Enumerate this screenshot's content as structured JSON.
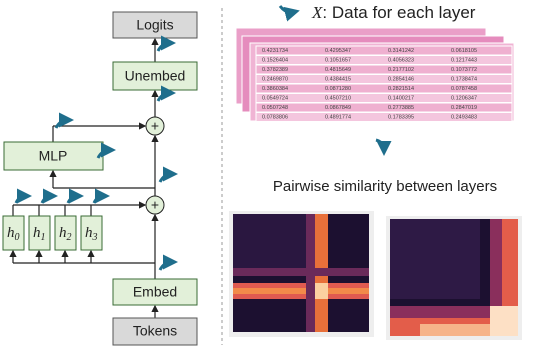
{
  "left": {
    "logits": "Logits",
    "unembed": "Unembed",
    "mlp": "MLP",
    "embed": "Embed",
    "tokens": "Tokens",
    "hidden": [
      {
        "base": "h",
        "sub": "0"
      },
      {
        "base": "h",
        "sub": "1"
      },
      {
        "base": "h",
        "sub": "2"
      },
      {
        "base": "h",
        "sub": "3"
      }
    ],
    "plus": "+"
  },
  "right": {
    "title_var": "X",
    "title_rest": ": Data for each layer",
    "subtitle": "Pairwise similarity between layers",
    "table": {
      "rows": [
        [
          "0.4231734",
          "0.4295347",
          "0.3141242",
          "0.0618105"
        ],
        [
          "0.1526404",
          "0.1051657",
          "0.4056323",
          "0.1217443"
        ],
        [
          "0.3782389",
          "0.4815649",
          "0.2177102",
          "0.1073772"
        ],
        [
          "0.2469870",
          "0.4384415",
          "0.2854146",
          "0.1738474"
        ],
        [
          "0.3860384",
          "0.0871280",
          "0.2821514",
          "0.0787458"
        ],
        [
          "0.0549724",
          "0.4507210",
          "0.1400217",
          "0.1206347"
        ],
        [
          "0.0507248",
          "0.0867849",
          "0.2773885",
          "0.2847019"
        ],
        [
          "0.0783806",
          "0.4891774",
          "0.1783395",
          "0.2493483"
        ]
      ]
    }
  }
}
